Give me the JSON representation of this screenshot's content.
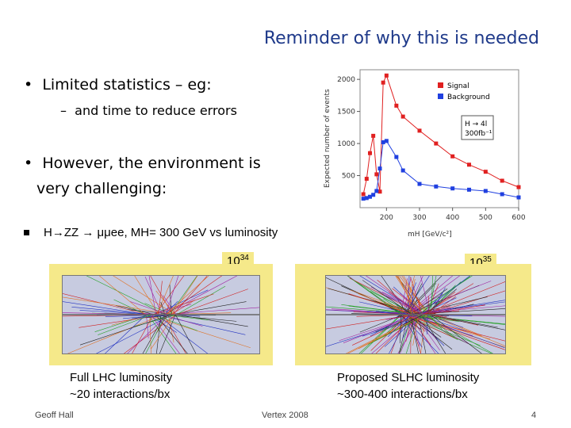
{
  "title": "Reminder of why this is needed",
  "bullets": {
    "b1": "Limited statistics – eg:",
    "b1_sub": "and time to reduce errors",
    "b2_line1": "However, the environment is",
    "b2_line2": "very challenging:"
  },
  "bullet_symbol": "•",
  "dash_symbol": "–",
  "hzz": "H→ZZ → μμee, MH= 300 GeV vs luminosity",
  "lumi_left": {
    "base": "10",
    "exp": "34"
  },
  "lumi_right": {
    "base": "10",
    "exp": "35"
  },
  "caption_left": [
    "Full LHC luminosity",
    "~20 interactions/bx"
  ],
  "caption_right": [
    "Proposed SLHC luminosity",
    "~300-400 interactions/bx"
  ],
  "footer": {
    "author": "Geoff Hall",
    "event": "Vertex 2008",
    "page": "4"
  },
  "colors": {
    "signal": "#e02020",
    "background": "#2040e0",
    "title": "#1f3a8a",
    "highlight": "#f5e98a"
  },
  "chart_data": {
    "type": "line",
    "ylabel": "Expected number of events",
    "xlabel": "mH [GeV/c²]",
    "xlim": [
      120,
      600
    ],
    "ylim": [
      0,
      2150
    ],
    "xticks": [
      200,
      300,
      400,
      500,
      600
    ],
    "yticks": [
      500,
      1000,
      1500,
      2000
    ],
    "legend_position": "top-right",
    "annotation": [
      "H → 4l",
      "300fb⁻¹"
    ],
    "series": [
      {
        "name": "Signal",
        "color": "#e02020",
        "x": [
          130,
          140,
          150,
          160,
          170,
          180,
          190,
          200,
          230,
          250,
          300,
          350,
          400,
          450,
          500,
          550,
          600
        ],
        "y": [
          210,
          450,
          850,
          1120,
          520,
          250,
          1950,
          2060,
          1590,
          1420,
          1200,
          1000,
          800,
          670,
          560,
          420,
          320
        ]
      },
      {
        "name": "Background",
        "color": "#2040e0",
        "x": [
          130,
          140,
          150,
          160,
          170,
          180,
          190,
          200,
          230,
          250,
          300,
          350,
          400,
          450,
          500,
          550,
          600
        ],
        "y": [
          140,
          150,
          170,
          200,
          260,
          610,
          1020,
          1040,
          790,
          580,
          370,
          330,
          300,
          280,
          260,
          210,
          160
        ]
      }
    ]
  }
}
